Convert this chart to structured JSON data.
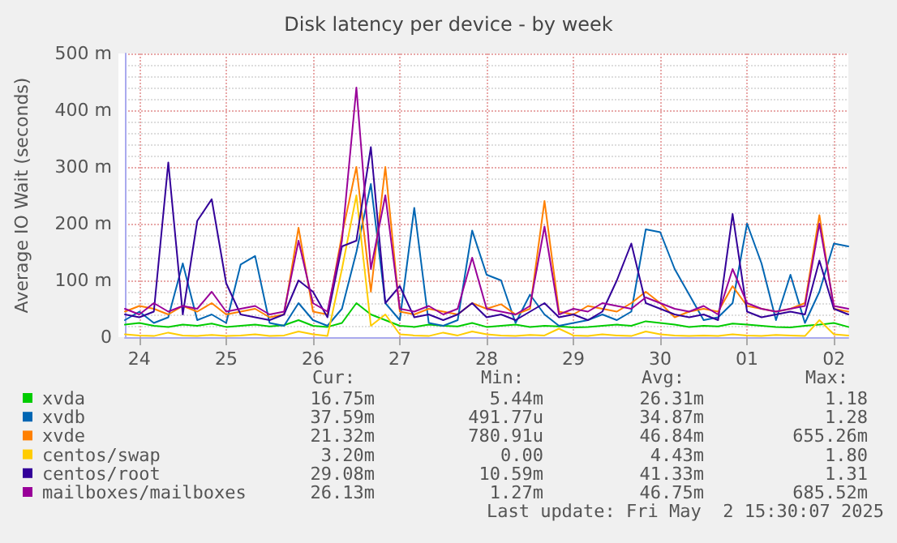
{
  "chart_data": {
    "type": "line",
    "title": "Disk latency per device - by week",
    "ylabel": "Average IO Wait (seconds)",
    "x": [
      "2025-04-23T20:00",
      "2025-04-24T00:00",
      "2025-04-24T04:00",
      "2025-04-24T08:00",
      "2025-04-24T12:00",
      "2025-04-24T16:00",
      "2025-04-24T20:00",
      "2025-04-25T00:00",
      "2025-04-25T04:00",
      "2025-04-25T08:00",
      "2025-04-25T12:00",
      "2025-04-25T16:00",
      "2025-04-25T20:00",
      "2025-04-26T00:00",
      "2025-04-26T04:00",
      "2025-04-26T08:00",
      "2025-04-26T12:00",
      "2025-04-26T16:00",
      "2025-04-26T20:00",
      "2025-04-27T00:00",
      "2025-04-27T04:00",
      "2025-04-27T08:00",
      "2025-04-27T12:00",
      "2025-04-27T16:00",
      "2025-04-27T20:00",
      "2025-04-28T00:00",
      "2025-04-28T04:00",
      "2025-04-28T08:00",
      "2025-04-28T12:00",
      "2025-04-28T16:00",
      "2025-04-28T20:00",
      "2025-04-29T00:00",
      "2025-04-29T04:00",
      "2025-04-29T08:00",
      "2025-04-29T12:00",
      "2025-04-29T16:00",
      "2025-04-29T20:00",
      "2025-04-30T00:00",
      "2025-04-30T04:00",
      "2025-04-30T08:00",
      "2025-04-30T12:00",
      "2025-04-30T16:00",
      "2025-04-30T20:00",
      "2025-05-01T00:00",
      "2025-05-01T04:00",
      "2025-05-01T08:00",
      "2025-05-01T12:00",
      "2025-05-01T16:00",
      "2025-05-01T20:00",
      "2025-05-02T00:00",
      "2025-05-02T04:00"
    ],
    "xlim": [
      "2025-04-23T20:00",
      "2025-05-02T04:00"
    ],
    "xticks": [
      {
        "value": "2025-04-24",
        "label": "24"
      },
      {
        "value": "2025-04-25",
        "label": "25"
      },
      {
        "value": "2025-04-26",
        "label": "26"
      },
      {
        "value": "2025-04-27",
        "label": "27"
      },
      {
        "value": "2025-04-28",
        "label": "28"
      },
      {
        "value": "2025-04-29",
        "label": "29"
      },
      {
        "value": "2025-04-30",
        "label": "30"
      },
      {
        "value": "2025-05-01",
        "label": "01"
      },
      {
        "value": "2025-05-02",
        "label": "02"
      }
    ],
    "ylim": [
      0,
      500
    ],
    "yticks": [
      0,
      {
        "value": 100,
        "label": "100 m"
      },
      {
        "value": 200,
        "label": "200 m"
      },
      {
        "value": 300,
        "label": "300 m"
      },
      {
        "value": 400,
        "label": "400 m"
      },
      {
        "value": 500,
        "label": "500 m"
      }
    ],
    "grid": true,
    "legend": "bottom",
    "marker": "none",
    "line_style": "solid",
    "series": [
      {
        "name": "xvda",
        "color": "#00cc00",
        "values": [
          22,
          25,
          20,
          18,
          22,
          20,
          24,
          18,
          20,
          22,
          19,
          21,
          30,
          20,
          18,
          25,
          60,
          40,
          30,
          20,
          18,
          22,
          20,
          19,
          25,
          18,
          20,
          22,
          18,
          20,
          19,
          17,
          18,
          20,
          22,
          20,
          28,
          25,
          22,
          18,
          20,
          19,
          24,
          22,
          20,
          18,
          17,
          20,
          22,
          25,
          18
        ]
      },
      {
        "name": "xvdb",
        "color": "#0066b3",
        "values": [
          30,
          45,
          25,
          35,
          130,
          30,
          40,
          25,
          128,
          143,
          25,
          20,
          60,
          30,
          20,
          50,
          150,
          270,
          60,
          30,
          228,
          25,
          20,
          30,
          188,
          110,
          100,
          25,
          75,
          40,
          20,
          25,
          30,
          40,
          30,
          45,
          190,
          185,
          120,
          75,
          30,
          35,
          60,
          200,
          130,
          30,
          110,
          25,
          80,
          165,
          160
        ]
      },
      {
        "name": "xvde",
        "color": "#ff8000",
        "values": [
          45,
          55,
          50,
          40,
          55,
          45,
          60,
          40,
          45,
          50,
          35,
          40,
          193,
          45,
          40,
          180,
          300,
          80,
          300,
          45,
          40,
          50,
          45,
          40,
          60,
          50,
          58,
          40,
          50,
          240,
          45,
          40,
          55,
          50,
          45,
          60,
          80,
          60,
          35,
          45,
          50,
          45,
          90,
          55,
          50,
          45,
          50,
          60,
          215,
          50,
          45
        ]
      },
      {
        "name": "centos/swap",
        "color": "#ffcc00",
        "values": [
          5,
          3,
          2,
          8,
          3,
          2,
          4,
          2,
          3,
          5,
          2,
          3,
          10,
          5,
          2,
          120,
          250,
          20,
          40,
          5,
          3,
          2,
          8,
          3,
          10,
          5,
          3,
          2,
          4,
          3,
          15,
          3,
          2,
          5,
          3,
          2,
          10,
          5,
          3,
          2,
          3,
          2,
          5,
          3,
          2,
          4,
          3,
          2,
          30,
          5,
          3
        ]
      },
      {
        "name": "centos/root",
        "color": "#330099",
        "values": [
          40,
          35,
          45,
          308,
          40,
          205,
          243,
          95,
          40,
          35,
          30,
          40,
          100,
          80,
          35,
          160,
          170,
          335,
          60,
          90,
          35,
          40,
          30,
          40,
          60,
          35,
          40,
          30,
          45,
          60,
          35,
          40,
          30,
          45,
          100,
          165,
          60,
          50,
          40,
          35,
          40,
          30,
          217,
          45,
          35,
          40,
          45,
          40,
          135,
          50,
          40
        ]
      },
      {
        "name": "mailboxes/mailboxes",
        "color": "#990099",
        "values": [
          50,
          40,
          60,
          45,
          55,
          50,
          80,
          45,
          50,
          55,
          40,
          45,
          170,
          60,
          45,
          170,
          440,
          120,
          250,
          50,
          45,
          55,
          40,
          50,
          140,
          50,
          45,
          40,
          55,
          195,
          40,
          50,
          45,
          60,
          55,
          50,
          70,
          60,
          50,
          45,
          55,
          40,
          120,
          60,
          50,
          45,
          50,
          55,
          200,
          55,
          50
        ]
      }
    ],
    "annotations": [
      "Cur:",
      "Min:",
      "Avg:",
      "Max:",
      "16.75m",
      "5.44m",
      "26.31m",
      "1.18",
      "37.59m",
      "491.77u",
      "34.87m",
      "1.28",
      "21.32m",
      "780.91u",
      "46.84m",
      "655.26m",
      "3.20m",
      "0.00",
      "4.43m",
      "1.80",
      "29.08m",
      "10.59m",
      "41.33m",
      "1.31",
      "26.13m",
      "1.27m",
      "46.75m",
      "685.52m",
      "Last update: Fri May  2 15:30:07 2025"
    ]
  }
}
